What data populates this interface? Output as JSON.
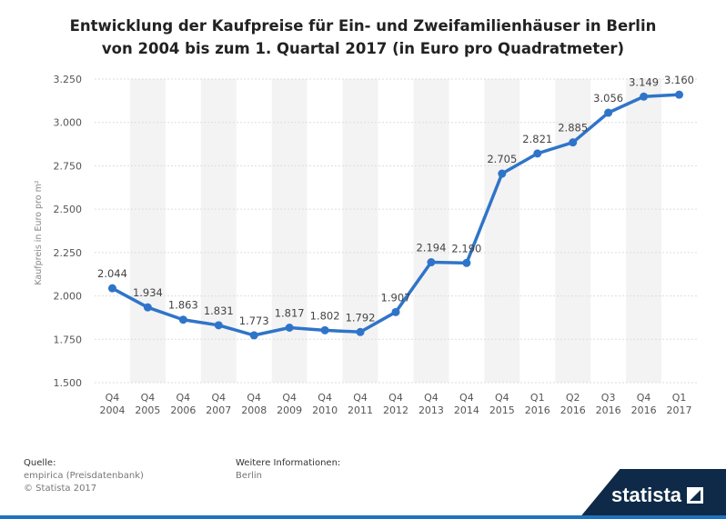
{
  "title": {
    "line1": "Entwicklung der Kaufpreise für Ein- und Zweifamilienhäuser in Berlin",
    "line2": "von 2004 bis zum 1. Quartal 2017 (in Euro pro Quadratmeter)"
  },
  "footer": {
    "source_label": "Quelle:",
    "source_value": "empirica (Preisdatenbank)",
    "copyright": "© Statista 2017",
    "more_info_label": "Weitere Informationen:",
    "more_info_value": "Berlin"
  },
  "logo": {
    "text": "statista"
  },
  "colors": {
    "line": "#2f74c9",
    "band": "#f3f3f3",
    "grid": "#dddddd",
    "brand": "#0e2a48"
  },
  "chart_data": {
    "type": "line",
    "ylabel": "Kaufpreis in Euro pro m²",
    "xlabel": "",
    "ylim": [
      1500,
      3250
    ],
    "yticks": [
      1500,
      1750,
      2000,
      2250,
      2500,
      2750,
      3000,
      3250
    ],
    "ytick_labels": [
      "1.500",
      "1.750",
      "2.000",
      "2.250",
      "2.500",
      "2.750",
      "3.000",
      "3.250"
    ],
    "grid": true,
    "categories": [
      [
        "Q4",
        "2004"
      ],
      [
        "Q4",
        "2005"
      ],
      [
        "Q4",
        "2006"
      ],
      [
        "Q4",
        "2007"
      ],
      [
        "Q4",
        "2008"
      ],
      [
        "Q4",
        "2009"
      ],
      [
        "Q4",
        "2010"
      ],
      [
        "Q4",
        "2011"
      ],
      [
        "Q4",
        "2012"
      ],
      [
        "Q4",
        "2013"
      ],
      [
        "Q4",
        "2014"
      ],
      [
        "Q4",
        "2015"
      ],
      [
        "Q1",
        "2016"
      ],
      [
        "Q2",
        "2016"
      ],
      [
        "Q3",
        "2016"
      ],
      [
        "Q4",
        "2016"
      ],
      [
        "Q1",
        "2017"
      ]
    ],
    "values": [
      2044,
      1934,
      1863,
      1831,
      1773,
      1817,
      1802,
      1792,
      1907,
      2194,
      2190,
      2705,
      2821,
      2885,
      3056,
      3149,
      3160
    ],
    "value_labels": [
      "2.044",
      "1.934",
      "1.863",
      "1.831",
      "1.773",
      "1.817",
      "1.802",
      "1.792",
      "1.907",
      "2.194",
      "2.190",
      "2.705",
      "2.821",
      "2.885",
      "3.056",
      "3.149",
      "3.160"
    ]
  }
}
